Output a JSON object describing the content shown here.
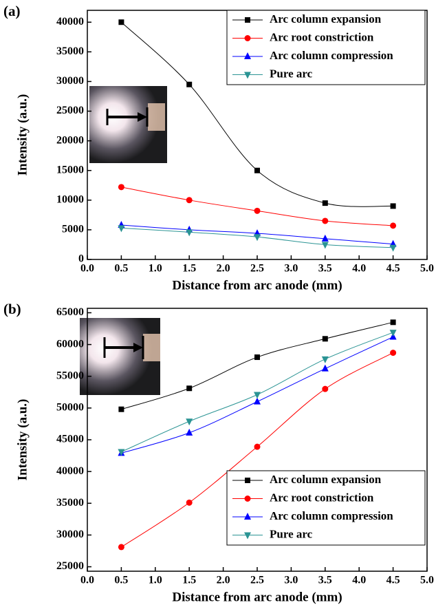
{
  "chart_data": [
    {
      "type": "line",
      "panel_label": "(a)",
      "x_label": "Distance from arc anode  (mm)",
      "y_label": "Intensity (a.u.)",
      "x": [
        0.5,
        1.5,
        2.5,
        3.5,
        4.5
      ],
      "series": [
        {
          "name": "Arc column expansion",
          "color": "#000000",
          "marker": "square",
          "values": [
            40000,
            29500,
            15000,
            9500,
            9000
          ]
        },
        {
          "name": "Arc root constriction",
          "color": "#ff0000",
          "marker": "circle",
          "values": [
            12200,
            10000,
            8200,
            6500,
            5700
          ]
        },
        {
          "name": "Arc column compression",
          "color": "#0000ff",
          "marker": "triangle-up",
          "values": [
            5800,
            5000,
            4400,
            3500,
            2600
          ]
        },
        {
          "name": "Pure arc",
          "color": "#2b9494",
          "marker": "triangle-down",
          "values": [
            5300,
            4600,
            3800,
            2500,
            2000
          ]
        }
      ],
      "xlim": [
        0,
        5
      ],
      "xticks": [
        {
          "value": 0,
          "label": "0.0"
        },
        0.5,
        {
          "value": 1,
          "label": "1.0"
        },
        1.5,
        {
          "value": 2,
          "label": "2.0"
        },
        2.5,
        {
          "value": 3,
          "label": "3.0"
        },
        3.5,
        {
          "value": 4,
          "label": "4.0"
        },
        4.5,
        {
          "value": 5,
          "label": "5.0"
        }
      ],
      "ylim": [
        0,
        42000
      ],
      "yticks": [
        0,
        5000,
        10000,
        15000,
        20000,
        25000,
        30000,
        35000,
        40000
      ],
      "legend": "upper right"
    },
    {
      "type": "line",
      "panel_label": "(b)",
      "x_label": "Distance from arc anode (mm)",
      "y_label": "Intensity (a.u.)",
      "x": [
        0.5,
        1.5,
        2.5,
        3.5,
        4.5
      ],
      "series": [
        {
          "name": "Arc column expansion",
          "color": "#000000",
          "marker": "square",
          "values": [
            49800,
            53100,
            58000,
            60900,
            63500
          ]
        },
        {
          "name": "Arc root constriction",
          "color": "#ff0000",
          "marker": "circle",
          "values": [
            28100,
            35100,
            43900,
            53000,
            58700
          ]
        },
        {
          "name": "Arc column compression",
          "color": "#0000ff",
          "marker": "triangle-up",
          "values": [
            42900,
            46100,
            51000,
            56200,
            61200
          ]
        },
        {
          "name": "Pure arc",
          "color": "#2b9494",
          "marker": "triangle-down",
          "values": [
            43100,
            47900,
            52100,
            57700,
            61900
          ]
        }
      ],
      "xlim": [
        0,
        5
      ],
      "xticks": [
        {
          "value": 0,
          "label": "0.0"
        },
        0.5,
        {
          "value": 1,
          "label": "1.0"
        },
        1.5,
        {
          "value": 2,
          "label": "2.0"
        },
        2.5,
        {
          "value": 3,
          "label": "3.0"
        },
        3.5,
        {
          "value": 4,
          "label": "4.0"
        },
        4.5,
        {
          "value": 5,
          "label": "5.0"
        }
      ],
      "ylim": [
        24300,
        65700
      ],
      "yticks": [
        25000,
        30000,
        35000,
        40000,
        45000,
        50000,
        55000,
        60000,
        65000
      ],
      "legend": "lower right"
    }
  ]
}
